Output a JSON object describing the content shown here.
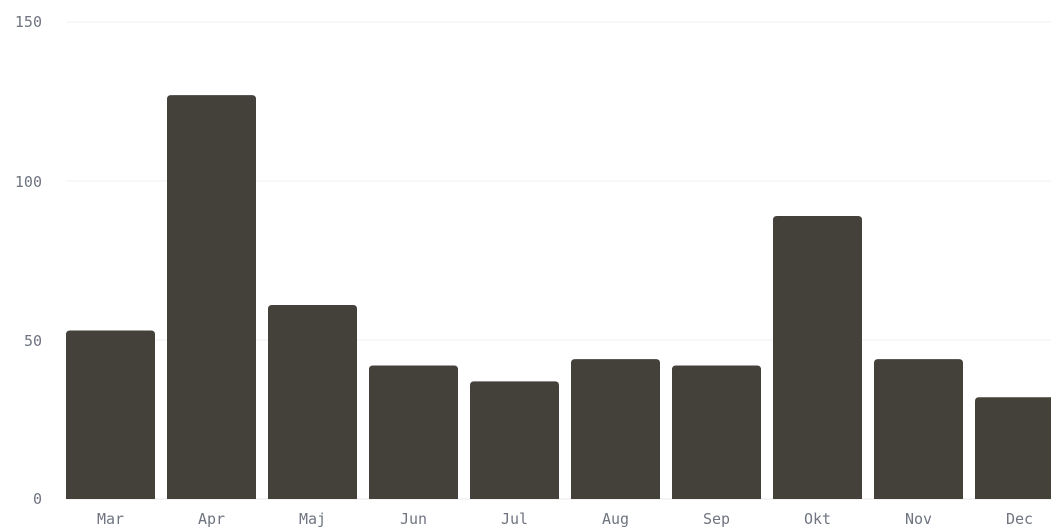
{
  "chart_data": {
    "type": "bar",
    "categories": [
      "Mar",
      "Apr",
      "Maj",
      "Jun",
      "Jul",
      "Aug",
      "Sep",
      "Okt",
      "Nov",
      "Dec"
    ],
    "values": [
      53,
      127,
      61,
      42,
      37,
      44,
      42,
      89,
      44,
      32
    ],
    "y_ticks": [
      "150",
      "100",
      "50",
      "0"
    ],
    "ylim": [
      0,
      150
    ],
    "grid": true,
    "legend": "none",
    "title": "",
    "xlabel": "",
    "ylabel": "",
    "colors": {
      "bar": "#43413a",
      "tick_text": "#6f7480",
      "grid": "#f1f1f3",
      "baseline": "#e8e8ea"
    }
  }
}
